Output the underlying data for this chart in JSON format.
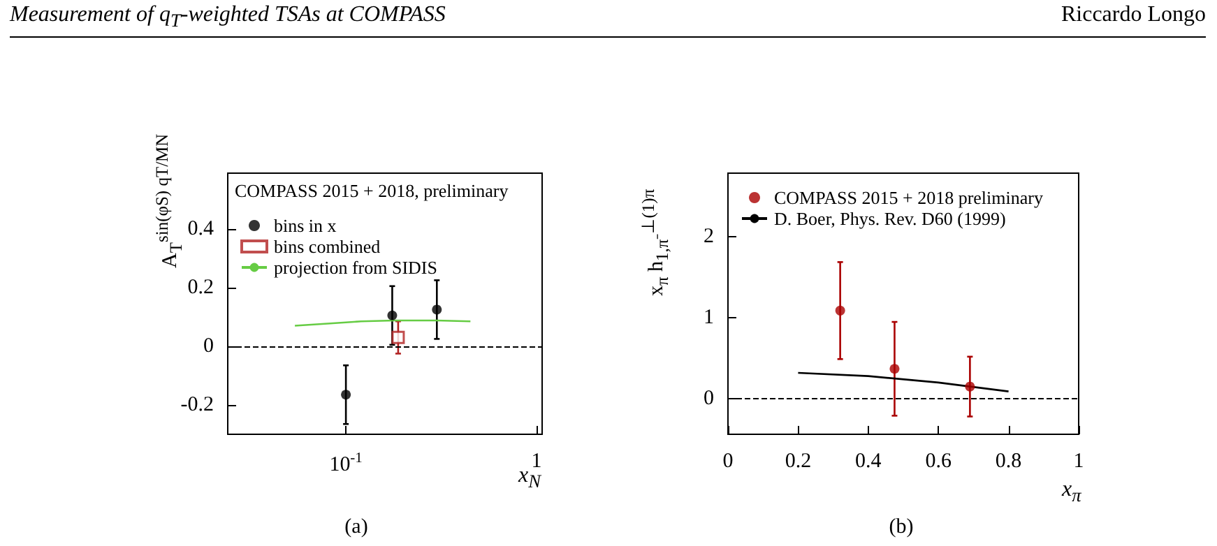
{
  "chart_data": [
    {
      "type": "scatter",
      "annotations": [
        "Measurement of q$_{T}$-weighted TSAs at COMPASS",
        "Riccardo Longo",
        "(a)"
      ],
      "xlabel": "x$_{N}$",
      "ylabel": "A$_{T}$$^{sin(φS) qT/MN}$",
      "legend_title": "COMPASS 2015 + 2018, preliminary",
      "legend": "top left",
      "log": "x",
      "xlim": [
        0.024,
        1.07
      ],
      "xticks": [
        {
          "value": 0.1,
          "label": "10$^{-1}$"
        },
        1
      ],
      "ylim": [
        -0.3,
        0.59
      ],
      "yticks": [
        -0.2,
        0,
        0.2,
        0.4
      ],
      "ref_lines": [
        {
          "axis": "y",
          "value": 0,
          "line_style": "dashed"
        }
      ],
      "series": [
        {
          "name": "bins in x",
          "color": "#000000",
          "marker": "circle",
          "x": [
            0.1,
            0.175,
            0.3
          ],
          "values": [
            -0.165,
            0.105,
            0.125
          ],
          "errors": [
            0.1,
            0.1,
            0.1
          ]
        },
        {
          "name": "bins combined",
          "color": "#b22222",
          "marker": "square",
          "x": [
            0.188
          ],
          "values": [
            0.03
          ],
          "errors": [
            0.055
          ]
        },
        {
          "name": "projection from SIDIS",
          "type": "line",
          "color": "#66cc44",
          "x": [
            0.054,
            0.08,
            0.12,
            0.18,
            0.3,
            0.45
          ],
          "values": [
            0.07,
            0.077,
            0.085,
            0.088,
            0.088,
            0.085
          ]
        }
      ]
    },
    {
      "type": "scatter",
      "annotations": [
        "(b)"
      ],
      "xlabel": "x$_{π}$",
      "ylabel": "x$_{π}$ h$_{1,π⁻}$$^{⊥(1)π}$",
      "legend": "top left",
      "xlim": [
        0,
        1
      ],
      "xticks": [
        0,
        0.2,
        0.4,
        0.6,
        0.8,
        1
      ],
      "ylim": [
        -0.44,
        2.79
      ],
      "yticks": [
        0,
        1,
        2
      ],
      "ref_lines": [
        {
          "axis": "y",
          "value": 0,
          "line_style": "dashed"
        }
      ],
      "series": [
        {
          "name": "COMPASS 2015 + 2018 preliminary",
          "color": "#aa0000",
          "marker": "circle",
          "x": [
            0.32,
            0.475,
            0.69
          ],
          "values": [
            1.09,
            0.37,
            0.15
          ],
          "errors": [
            0.6,
            0.58,
            0.37
          ]
        },
        {
          "name": "D. Boer, Phys. Rev. D60 (1999)",
          "type": "line",
          "color": "#000000",
          "x": [
            0.2,
            0.4,
            0.6,
            0.8
          ],
          "values": [
            0.32,
            0.28,
            0.2,
            0.09
          ]
        }
      ]
    }
  ]
}
